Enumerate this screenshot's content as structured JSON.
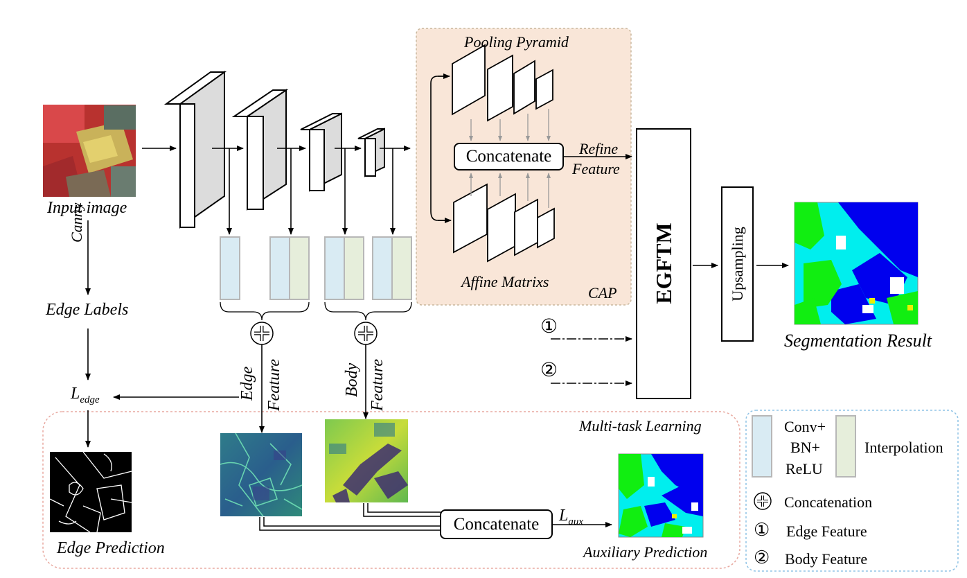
{
  "labels": {
    "input_image": "Input image",
    "canny": "Canny",
    "edge_labels": "Edge Labels",
    "l_edge_main": "L",
    "l_edge_sub": "edge",
    "edge_prediction": "Edge Prediction",
    "edge_feature_1": "Edge",
    "edge_feature_2": "Feature",
    "body_feature_1": "Body",
    "body_feature_2": "Feature",
    "pooling_pyramid": "Pooling Pyramid",
    "affine_matrixs": "Affine Matrixs",
    "concatenate_top": "Concatenate",
    "refine": "Refine",
    "feature": "Feature",
    "cap": "CAP",
    "egftm": "EGFTM",
    "upsampling": "Upsampling",
    "segmentation_result": "Segmentation Result",
    "multi_task_learning": "Multi-task Learning",
    "concatenate_bottom": "Concatenate",
    "l_aux_main": "L",
    "l_aux_sub": "aux",
    "auxiliary_prediction": "Auxiliary Prediction",
    "circle_one": "①",
    "circle_two": "②"
  },
  "legend": {
    "conv_line1": "Conv+",
    "conv_line2": "BN+",
    "conv_line3": "ReLU",
    "interpolation": "Interpolation",
    "concatenation": "Concatenation",
    "edge_feature": "Edge Feature",
    "body_feature": "Body Feature",
    "circle_one": "①",
    "circle_two": "②"
  },
  "colors": {
    "conv_block": "#d9ebf3",
    "interp_block": "#e6eedb",
    "cap_bg": "#f9e6d8",
    "cap_border": "#c9b79d",
    "multitask_border": "#e8a9a0",
    "legend_border": "#8fc3e6",
    "seg_blue": "#0000ee",
    "seg_cyan": "#00eeee",
    "seg_green": "#11ee11",
    "seg_yellow": "#eeee00",
    "seg_white": "#ffffff"
  }
}
